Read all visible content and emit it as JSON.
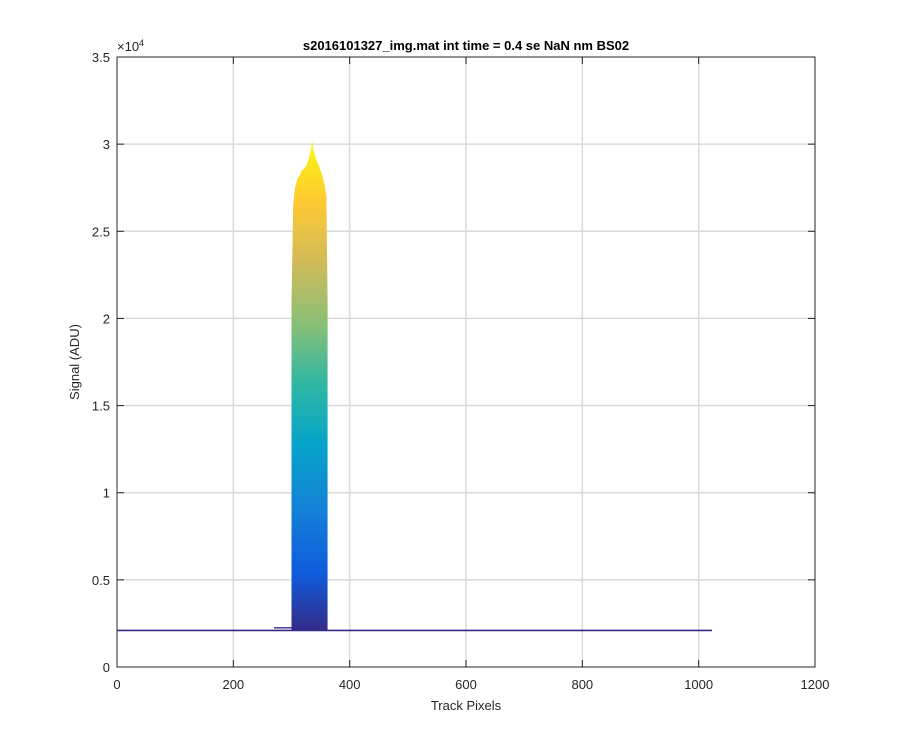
{
  "chart_data": {
    "type": "area",
    "title": "s2016101327_img.mat int time = 0.4 se  NaN nm BS02",
    "xlabel": "Track Pixels",
    "ylabel": "Signal (ADU)",
    "xlim": [
      0,
      1200
    ],
    "ylim": [
      0,
      35000
    ],
    "x_ticks": [
      0,
      200,
      400,
      600,
      800,
      1000,
      1200
    ],
    "y_ticks": [
      0,
      5000,
      10000,
      15000,
      20000,
      25000,
      30000,
      35000
    ],
    "x_tick_labels": [
      "0",
      "200",
      "400",
      "600",
      "800",
      "1000",
      "1200"
    ],
    "y_tick_labels": [
      "0",
      "0.5",
      "1",
      "1.5",
      "2",
      "2.5",
      "3",
      "3.5"
    ],
    "y_exponent_base": "×10",
    "y_exponent_power": "4",
    "grid": true,
    "colormap": "parula",
    "baseline_level": 2100,
    "x_range": [
      0,
      1023
    ],
    "series": [
      {
        "x": [
          300,
          303,
          306,
          310,
          314,
          318,
          322,
          326,
          330,
          334,
          336,
          338,
          340,
          344,
          348,
          352,
          356,
          360,
          362
        ],
        "values": [
          21000,
          26500,
          27500,
          28000,
          28200,
          28500,
          28600,
          28800,
          29200,
          29800,
          30200,
          29600,
          29400,
          29000,
          28700,
          28300,
          27800,
          27000,
          21000
        ]
      }
    ],
    "peak": {
      "x_start": 300,
      "x_end": 362,
      "max_value": 30200
    }
  }
}
